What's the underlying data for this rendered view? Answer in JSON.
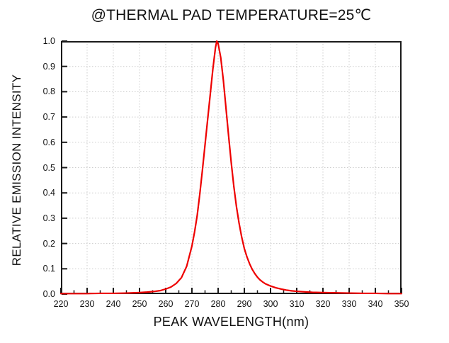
{
  "page": {
    "background": "#ffffff"
  },
  "chart_data": {
    "type": "line",
    "title": "@THERMAL PAD TEMPERATURE=25℃",
    "xlabel": "PEAK WAVELENGTH(nm)",
    "ylabel": "RELATIVE EMISSION INTENSITY",
    "xlim": [
      220,
      350
    ],
    "ylim": [
      0,
      1
    ],
    "x_major_ticks": [
      220,
      230,
      240,
      250,
      260,
      270,
      280,
      290,
      300,
      310,
      320,
      330,
      340,
      350
    ],
    "x_tick_labels": [
      "220",
      "230",
      "240",
      "250",
      "260",
      "270",
      "280",
      "290",
      "300",
      "310",
      "320",
      "330",
      "340",
      "350"
    ],
    "x_minor_ticks": [
      225,
      235,
      245,
      255,
      265,
      275,
      285,
      295,
      305,
      315,
      325,
      335,
      345
    ],
    "y_ticks": [
      0,
      0.1,
      0.2,
      0.3,
      0.4,
      0.5,
      0.6,
      0.7,
      0.8,
      0.9,
      1.0
    ],
    "y_tick_labels": [
      "0.0",
      "0.1",
      "0.2",
      "0.3",
      "0.4",
      "0.5",
      "0.6",
      "0.7",
      "0.8",
      "0.9",
      "1.0"
    ],
    "grid": {
      "show": true,
      "style": "dotted",
      "color": "#cccccc"
    },
    "legend": "none",
    "axis_color": "#1a1a1a",
    "text_color": "#111111",
    "line_color": "#ee0000",
    "peak": {
      "wavelength_nm": 279.5,
      "intensity": 1.0,
      "fwhm_nm": 11
    },
    "series": [
      {
        "name": "relative-emission-intensity",
        "x": [
          220,
          225,
          230,
          235,
          240,
          245,
          250,
          253,
          256,
          258,
          260,
          262,
          264,
          266,
          268,
          270,
          271,
          272,
          273,
          274,
          275,
          276,
          277,
          278,
          279,
          279.5,
          280,
          281,
          282,
          283,
          284,
          285,
          286,
          287,
          288,
          289,
          290,
          291,
          292,
          293,
          294,
          295,
          296,
          297,
          298,
          300,
          302,
          304,
          306,
          308,
          310,
          313,
          316,
          320,
          325,
          330,
          335,
          340,
          345,
          350
        ],
        "y": [
          0.002,
          0.002,
          0.002,
          0.003,
          0.003,
          0.004,
          0.006,
          0.008,
          0.011,
          0.014,
          0.02,
          0.028,
          0.042,
          0.065,
          0.11,
          0.19,
          0.245,
          0.31,
          0.395,
          0.49,
          0.59,
          0.69,
          0.79,
          0.89,
          0.975,
          1.0,
          0.99,
          0.935,
          0.845,
          0.735,
          0.625,
          0.52,
          0.425,
          0.345,
          0.28,
          0.225,
          0.18,
          0.147,
          0.12,
          0.098,
          0.081,
          0.067,
          0.056,
          0.048,
          0.041,
          0.032,
          0.025,
          0.02,
          0.016,
          0.013,
          0.011,
          0.009,
          0.007,
          0.006,
          0.005,
          0.004,
          0.003,
          0.003,
          0.002,
          0.002
        ]
      }
    ]
  }
}
